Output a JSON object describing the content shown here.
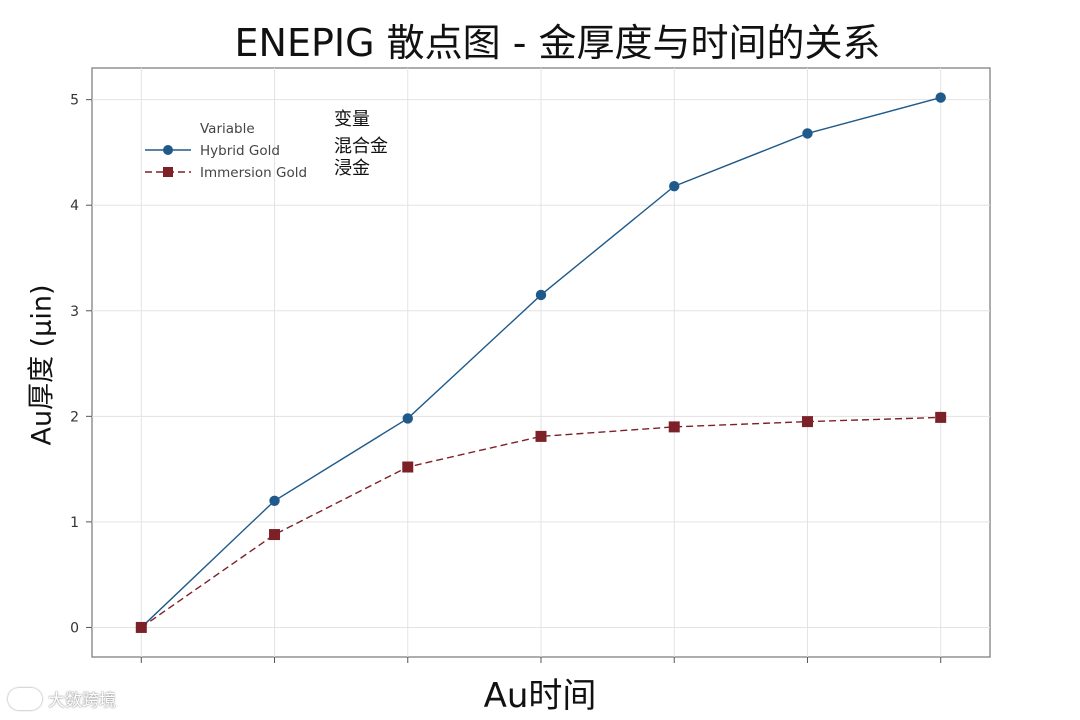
{
  "chart_data": {
    "type": "line",
    "title": "ENEPIG 散点图 - 金厚度与时间的关系",
    "xlabel": "Au时间",
    "ylabel": "Au厚度 (μin)",
    "ylim": [
      -0.28,
      5.3
    ],
    "y_ticks": [
      0,
      1,
      2,
      3,
      4,
      5
    ],
    "x": [
      1,
      2,
      3,
      4,
      5,
      6,
      7
    ],
    "xlim": [
      0.63,
      7.37
    ],
    "x_tick_labels_shown": false,
    "grid": true,
    "legend": {
      "position": "top-left",
      "title": "Variable",
      "title_cn": "变量"
    },
    "series": [
      {
        "name": "Hybrid Gold",
        "name_cn": "混合金",
        "color": "#1f5a8a",
        "marker": "circle",
        "line_style": "solid",
        "values": [
          0,
          1.2,
          1.98,
          3.15,
          4.18,
          4.68,
          5.02
        ]
      },
      {
        "name": "Immersion Gold",
        "name_cn": "浸金",
        "color": "#7d2128",
        "marker": "square",
        "line_style": "dashed",
        "values": [
          0,
          0.88,
          1.52,
          1.81,
          1.9,
          1.95,
          1.99
        ]
      }
    ]
  },
  "watermark": {
    "text": "大数跨境",
    "icon": "brand-logo-icon"
  }
}
